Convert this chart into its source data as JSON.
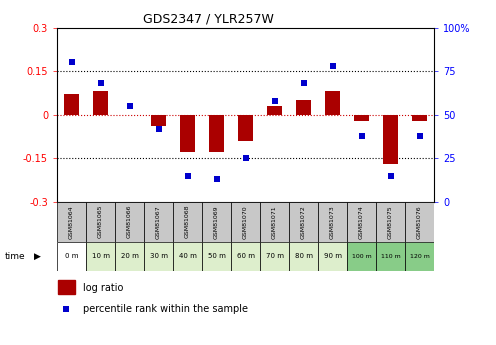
{
  "title": "GDS2347 / YLR257W",
  "samples": [
    "GSM81064",
    "GSM81065",
    "GSM81066",
    "GSM81067",
    "GSM81068",
    "GSM81069",
    "GSM81070",
    "GSM81071",
    "GSM81072",
    "GSM81073",
    "GSM81074",
    "GSM81075",
    "GSM81076"
  ],
  "times": [
    "0 m",
    "10 m",
    "20 m",
    "30 m",
    "40 m",
    "50 m",
    "60 m",
    "70 m",
    "80 m",
    "90 m",
    "100 m",
    "110 m",
    "120 m"
  ],
  "log_ratio": [
    0.07,
    0.08,
    0.0,
    -0.04,
    -0.13,
    -0.13,
    -0.09,
    0.03,
    0.05,
    0.08,
    -0.02,
    -0.17,
    -0.02
  ],
  "percentile": [
    80,
    68,
    55,
    42,
    15,
    13,
    25,
    58,
    68,
    78,
    38,
    15,
    38
  ],
  "bar_color": "#aa0000",
  "dot_color": "#0000cc",
  "ylim_left": [
    -0.3,
    0.3
  ],
  "ylim_right": [
    0,
    100
  ],
  "yticks_left": [
    -0.3,
    -0.15,
    0.0,
    0.15,
    0.3
  ],
  "yticks_right": [
    0,
    25,
    50,
    75,
    100
  ],
  "hlines": [
    0.15,
    -0.15
  ],
  "hline_zero_color": "#cc0000",
  "cell_colors": [
    "#ffffff",
    "#ddeecc",
    "#ddeecc",
    "#ddeecc",
    "#ddeecc",
    "#ddeecc",
    "#ddeecc",
    "#ddeecc",
    "#ddeecc",
    "#ddeecc",
    "#88cc88",
    "#88cc88",
    "#88cc88"
  ],
  "legend_log_ratio_color": "#aa0000",
  "legend_percentile_color": "#0000cc",
  "legend_log_ratio_label": "log ratio",
  "legend_percentile_label": "percentile rank within the sample"
}
